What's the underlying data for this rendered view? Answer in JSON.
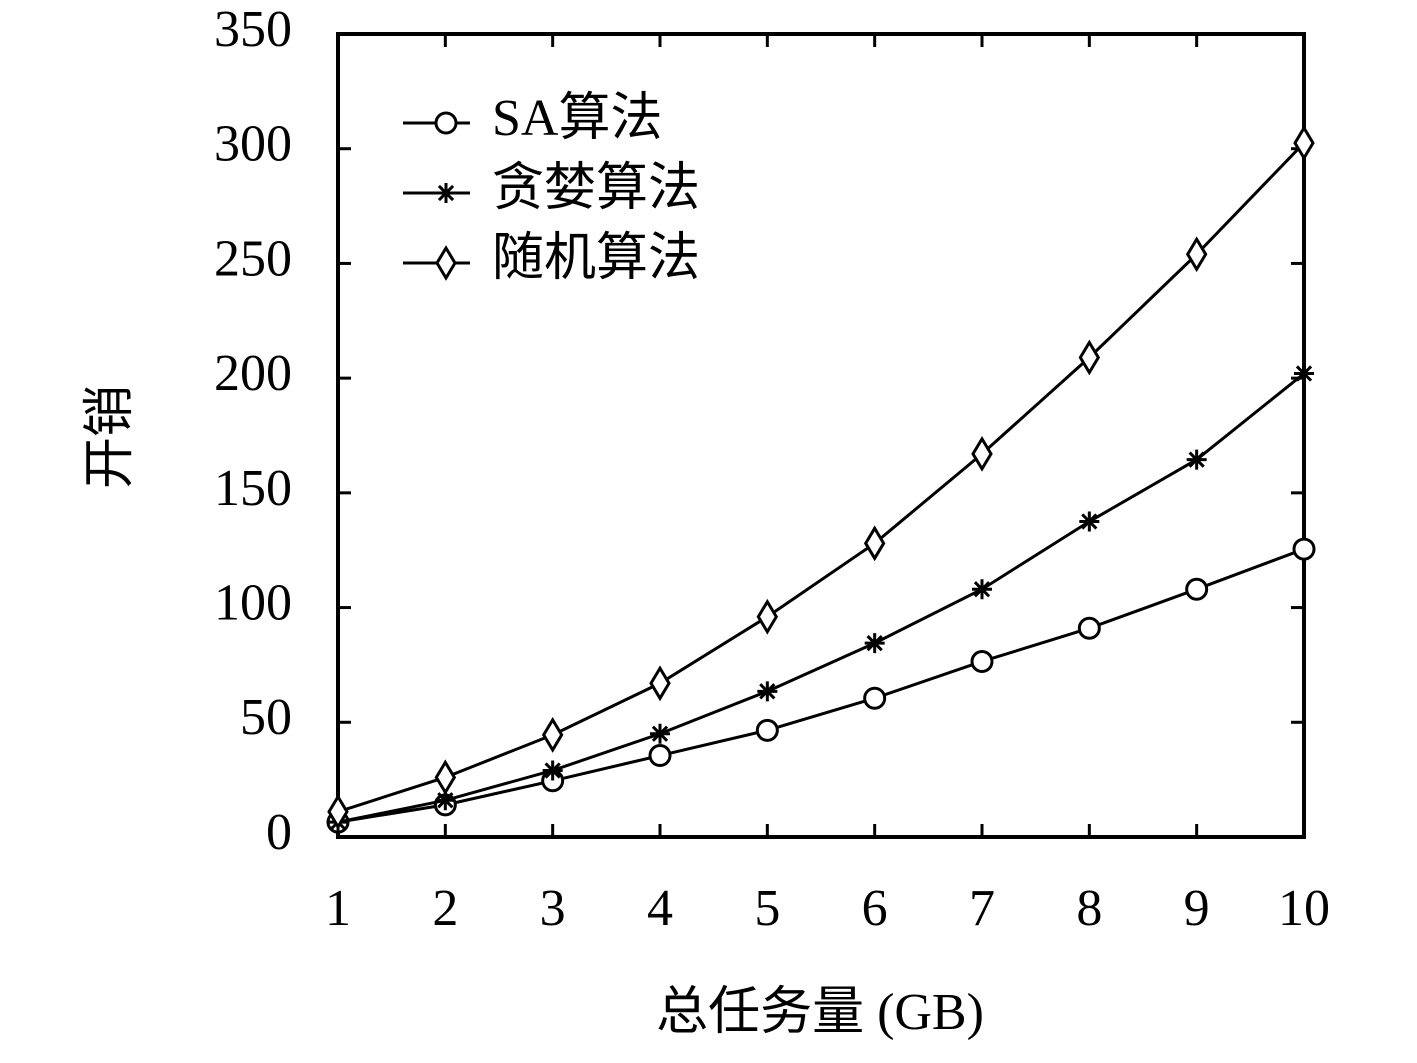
{
  "chart_data": {
    "type": "line",
    "x_label": "总任务量 (GB)",
    "y_label": "开销",
    "x": [
      1,
      2,
      3,
      4,
      5,
      6,
      7,
      8,
      9,
      10
    ],
    "series": [
      {
        "name": "SA算法",
        "color": "#000000",
        "marker": "circle",
        "values": [
          6.5,
          14,
          24.5,
          35.5,
          46.5,
          60.5,
          76.5,
          91,
          108,
          125.5
        ]
      },
      {
        "name": "贪婪算法",
        "color": "#000000",
        "marker": "asterisk",
        "values": [
          6.5,
          16,
          29,
          45,
          63.5,
          84.5,
          108,
          137.5,
          164.5,
          202
        ]
      },
      {
        "name": "随机算法",
        "color": "#000000",
        "marker": "diamond",
        "values": [
          11,
          26,
          44.5,
          67,
          96,
          128,
          167,
          209,
          254,
          302.5
        ]
      }
    ],
    "xlim": [
      1,
      10
    ],
    "xticks": [
      1,
      2,
      3,
      4,
      5,
      6,
      7,
      8,
      9,
      10
    ],
    "ylim": [
      0,
      350
    ],
    "yticks": [
      0,
      50,
      100,
      150,
      200,
      250,
      300,
      350
    ],
    "grid": false,
    "legend": "upper left"
  }
}
